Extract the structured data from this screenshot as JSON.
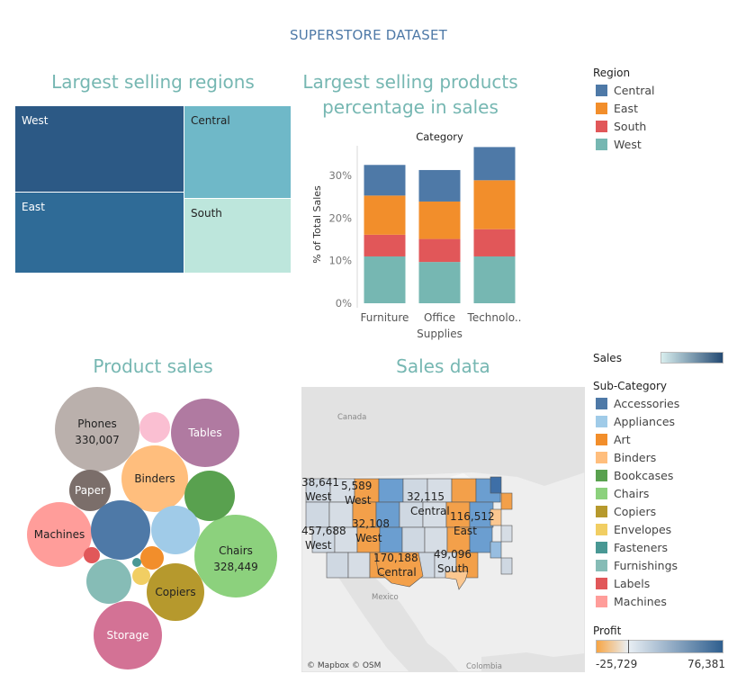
{
  "dashboard": {
    "title": "SUPERSTORE DATASET"
  },
  "colors": {
    "title_teal": "#76b7b2",
    "dashboard_title": "#4e79a7",
    "central": "#4e79a7",
    "east": "#f28e2b",
    "south": "#e15759",
    "west": "#76b7b2"
  },
  "chart_data": [
    {
      "id": "treemap",
      "type": "treemap",
      "title": "Largest selling regions",
      "items": [
        {
          "label": "West",
          "color": "#2c5985"
        },
        {
          "label": "East",
          "color": "#2f6b97"
        },
        {
          "label": "Central",
          "color": "#6fb8c8"
        },
        {
          "label": "South",
          "color": "#bde6dc"
        }
      ]
    },
    {
      "id": "stacked",
      "type": "bar",
      "title_line1": "Largest selling products",
      "title_line2": "percentage in sales",
      "column_header": "Category",
      "ylabel": "% of Total Sales",
      "ylim": [
        0,
        37
      ],
      "yticks": [
        "0%",
        "10%",
        "20%",
        "30%"
      ],
      "ytick_values": [
        0,
        10,
        20,
        30
      ],
      "categories": [
        "Furniture",
        "Office Supplies",
        "Technolo.."
      ],
      "category_label_lines": [
        [
          "Furniture"
        ],
        [
          "Office",
          "Supplies"
        ],
        [
          "Technolo.."
        ]
      ],
      "series": [
        {
          "name": "West",
          "color": "#76b7b2",
          "values": [
            11,
            9.7,
            11
          ]
        },
        {
          "name": "South",
          "color": "#e15759",
          "values": [
            5.1,
            5.4,
            6.4
          ]
        },
        {
          "name": "East",
          "color": "#f28e2b",
          "values": [
            9.2,
            8.8,
            11.5
          ]
        },
        {
          "name": "Central",
          "color": "#4e79a7",
          "values": [
            7.2,
            7.4,
            7.8
          ]
        }
      ]
    },
    {
      "id": "bubbles",
      "type": "bubble",
      "title": "Product sales",
      "bubbles": [
        {
          "label": "Phones",
          "value": "330,007",
          "color": "#bab0ac"
        },
        {
          "label": "Tables",
          "value": "",
          "color": "#b07aa1"
        },
        {
          "label": "Binders",
          "value": "",
          "color": "#ffbe7d"
        },
        {
          "label": "Paper",
          "value": "",
          "color": "#7b6e6a"
        },
        {
          "label": "Machines",
          "value": "",
          "color": "#ff9d9a"
        },
        {
          "label": "Chairs",
          "value": "328,449",
          "color": "#8cd17d"
        },
        {
          "label": "Copiers",
          "value": "",
          "color": "#b6992d"
        },
        {
          "label": "Storage",
          "value": "",
          "color": "#d37295"
        },
        {
          "label": "",
          "value": "",
          "color": "#fabfd2"
        },
        {
          "label": "",
          "value": "",
          "color": "#59a14f"
        },
        {
          "label": "",
          "value": "",
          "color": "#4e79a7"
        },
        {
          "label": "",
          "value": "",
          "color": "#a0cbe8"
        },
        {
          "label": "",
          "value": "",
          "color": "#e15759"
        },
        {
          "label": "",
          "value": "",
          "color": "#f28e2b"
        },
        {
          "label": "",
          "value": "",
          "color": "#499894"
        },
        {
          "label": "",
          "value": "",
          "color": "#86bcb6"
        },
        {
          "label": "",
          "value": "",
          "color": "#f1ce63"
        }
      ]
    },
    {
      "id": "map",
      "type": "map",
      "title": "Sales data",
      "place_labels": [
        "Canada",
        "Mexico",
        "Colombia"
      ],
      "attribution": "© Mapbox © OSM",
      "annotations": [
        {
          "value": "38,641",
          "region": "West"
        },
        {
          "value": "5,589",
          "region": "West"
        },
        {
          "value": "32,115",
          "region": "Central"
        },
        {
          "value": "116,512",
          "region": "East"
        },
        {
          "value": "32,108",
          "region": "West"
        },
        {
          "value": "457,688",
          "region": "West"
        },
        {
          "value": "49,096",
          "region": "South"
        },
        {
          "value": "170,188",
          "region": "Central"
        }
      ]
    }
  ],
  "legends": {
    "region": {
      "title": "Region",
      "items": [
        {
          "label": "Central",
          "color": "#4e79a7"
        },
        {
          "label": "East",
          "color": "#f28e2b"
        },
        {
          "label": "South",
          "color": "#e15759"
        },
        {
          "label": "West",
          "color": "#76b7b2"
        }
      ]
    },
    "sales": {
      "title": "Sales",
      "color_from": "#d8eeee",
      "color_to": "#244a73"
    },
    "subcategory": {
      "title": "Sub-Category",
      "items": [
        {
          "label": "Accessories",
          "color": "#4e79a7"
        },
        {
          "label": "Appliances",
          "color": "#a0cbe8"
        },
        {
          "label": "Art",
          "color": "#f28e2b"
        },
        {
          "label": "Binders",
          "color": "#ffbe7d"
        },
        {
          "label": "Bookcases",
          "color": "#59a14f"
        },
        {
          "label": "Chairs",
          "color": "#8cd17d"
        },
        {
          "label": "Copiers",
          "color": "#b6992d"
        },
        {
          "label": "Envelopes",
          "color": "#f1ce63"
        },
        {
          "label": "Fasteners",
          "color": "#499894"
        },
        {
          "label": "Furnishings",
          "color": "#86bcb6"
        },
        {
          "label": "Labels",
          "color": "#e15759"
        },
        {
          "label": "Machines",
          "color": "#ff9d9a"
        }
      ]
    },
    "profit": {
      "title": "Profit",
      "min_label": "-25,729",
      "max_label": "76,381",
      "color_from": "#f7a544",
      "color_mid": "#e9eff4",
      "color_to": "#2f5f8f"
    }
  }
}
